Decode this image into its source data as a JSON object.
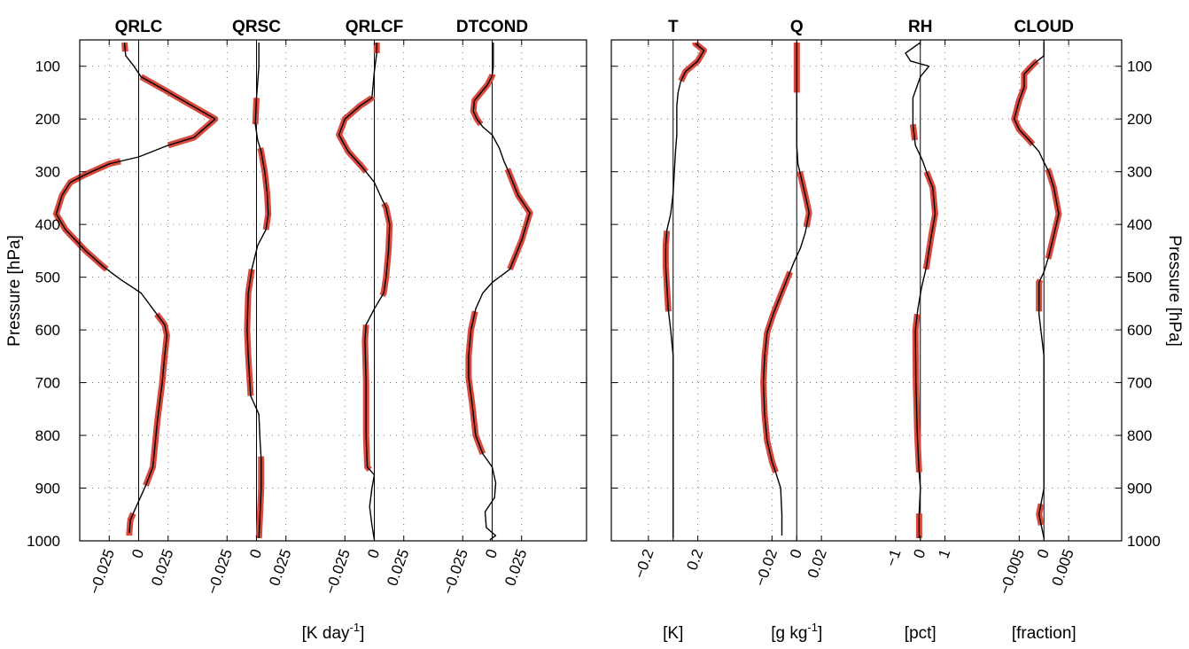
{
  "chart_data": [
    {
      "type": "line",
      "panel": "left",
      "ylabel": "Pressure [hPa]",
      "xlabel": "[K day^-1]",
      "ylim": [
        1000,
        50
      ],
      "yticks": [
        100,
        200,
        300,
        400,
        500,
        600,
        700,
        800,
        900,
        1000
      ],
      "column_width_units": 0.1,
      "grid": "dotted",
      "columns": [
        {
          "title": "QRLC",
          "xticks": [
            -0.025,
            0,
            0.025
          ],
          "xtick_labels": [
            "−0.025",
            "0",
            "0.025"
          ],
          "profile": [
            [
              -0.012,
              55
            ],
            [
              -0.011,
              80
            ],
            [
              -0.004,
              100
            ],
            [
              0.002,
              120
            ],
            [
              0.022,
              145
            ],
            [
              0.065,
              200
            ],
            [
              0.047,
              235
            ],
            [
              0.025,
              250
            ],
            [
              0.0,
              272
            ],
            [
              -0.025,
              285
            ],
            [
              -0.045,
              305
            ],
            [
              -0.058,
              320
            ],
            [
              -0.065,
              345
            ],
            [
              -0.07,
              380
            ],
            [
              -0.062,
              410
            ],
            [
              -0.045,
              450
            ],
            [
              -0.03,
              480
            ],
            [
              -0.015,
              505
            ],
            [
              0.002,
              530
            ],
            [
              0.012,
              560
            ],
            [
              0.022,
              590
            ],
            [
              0.024,
              610
            ],
            [
              0.022,
              650
            ],
            [
              0.02,
              700
            ],
            [
              0.016,
              770
            ],
            [
              0.012,
              860
            ],
            [
              0.006,
              895
            ],
            [
              -0.002,
              935
            ],
            [
              -0.007,
              960
            ],
            [
              -0.008,
              985
            ]
          ],
          "highlights": [
            [
              55,
              72
            ],
            [
              120,
              250
            ],
            [
              280,
              485
            ],
            [
              570,
              895
            ],
            [
              948,
              990
            ]
          ]
        },
        {
          "title": "QRSC",
          "xticks": [
            -0.025,
            0,
            0.025
          ],
          "xtick_labels": [
            "−0.025",
            "0",
            "0.025"
          ],
          "profile": [
            [
              0.002,
              55
            ],
            [
              0.002,
              100
            ],
            [
              0.0,
              160
            ],
            [
              -0.001,
              210
            ],
            [
              0.001,
              240
            ],
            [
              0.004,
              262
            ],
            [
              0.007,
              300
            ],
            [
              0.009,
              340
            ],
            [
              0.01,
              380
            ],
            [
              0.008,
              410
            ],
            [
              0.001,
              440
            ],
            [
              -0.004,
              485
            ],
            [
              -0.007,
              530
            ],
            [
              -0.008,
              600
            ],
            [
              -0.007,
              650
            ],
            [
              -0.005,
              725
            ],
            [
              0.002,
              760
            ],
            [
              0.003,
              810
            ],
            [
              0.004,
              845
            ],
            [
              0.004,
              900
            ],
            [
              0.003,
              950
            ],
            [
              0.002,
              995
            ]
          ],
          "highlights": [
            [
              160,
              210
            ],
            [
              255,
              410
            ],
            [
              485,
              725
            ],
            [
              840,
              995
            ]
          ]
        },
        {
          "title": "QRLCF",
          "xticks": [
            -0.025,
            0,
            0.025
          ],
          "xtick_labels": [
            "−0.025",
            "0",
            "0.025"
          ],
          "profile": [
            [
              0.002,
              55
            ],
            [
              0.002,
              75
            ],
            [
              0.0,
              110
            ],
            [
              -0.002,
              160
            ],
            [
              -0.012,
              175
            ],
            [
              -0.025,
              200
            ],
            [
              -0.03,
              230
            ],
            [
              -0.022,
              262
            ],
            [
              -0.01,
              292
            ],
            [
              0.0,
              320
            ],
            [
              0.006,
              350
            ],
            [
              0.01,
              368
            ],
            [
              0.013,
              400
            ],
            [
              0.012,
              450
            ],
            [
              0.01,
              500
            ],
            [
              0.008,
              530
            ],
            [
              0.0,
              560
            ],
            [
              -0.007,
              590
            ],
            [
              -0.008,
              620
            ],
            [
              -0.007,
              700
            ],
            [
              -0.007,
              800
            ],
            [
              -0.006,
              860
            ],
            [
              0.0,
              875
            ],
            [
              -0.002,
              900
            ],
            [
              -0.004,
              935
            ],
            [
              -0.002,
              970
            ],
            [
              0.0,
              998
            ]
          ],
          "highlights": [
            [
              55,
              75
            ],
            [
              158,
              300
            ],
            [
              360,
              535
            ],
            [
              590,
              865
            ]
          ]
        },
        {
          "title": "DTCOND",
          "xticks": [
            -0.025,
            0,
            0.025
          ],
          "xtick_labels": [
            "−0.025",
            "0",
            "0.025"
          ],
          "profile": [
            [
              0.001,
              55
            ],
            [
              0.001,
              100
            ],
            [
              0.0,
              118
            ],
            [
              -0.004,
              135
            ],
            [
              -0.015,
              165
            ],
            [
              -0.016,
              185
            ],
            [
              -0.013,
              200
            ],
            [
              -0.008,
              215
            ],
            [
              0.0,
              230
            ],
            [
              0.006,
              255
            ],
            [
              0.01,
              280
            ],
            [
              0.014,
              300
            ],
            [
              0.022,
              345
            ],
            [
              0.032,
              378
            ],
            [
              0.025,
              430
            ],
            [
              0.015,
              485
            ],
            [
              0.0,
              510
            ],
            [
              -0.008,
              530
            ],
            [
              -0.014,
              560
            ],
            [
              -0.018,
              600
            ],
            [
              -0.02,
              650
            ],
            [
              -0.02,
              690
            ],
            [
              -0.017,
              740
            ],
            [
              -0.014,
              800
            ],
            [
              -0.008,
              835
            ],
            [
              0.0,
              860
            ],
            [
              0.003,
              890
            ],
            [
              0.002,
              918
            ],
            [
              -0.006,
              945
            ],
            [
              -0.005,
              975
            ],
            [
              0.003,
              990
            ],
            [
              -0.002,
              998
            ]
          ],
          "highlights": [
            [
              115,
              210
            ],
            [
              295,
              485
            ],
            [
              565,
              835
            ]
          ]
        }
      ]
    },
    {
      "type": "line",
      "panel": "right",
      "ylabel": "Pressure [hPa]",
      "ylim": [
        1000,
        50
      ],
      "yticks": [
        100,
        200,
        300,
        400,
        500,
        600,
        700,
        800,
        900,
        1000
      ],
      "grid": "dotted",
      "columns": [
        {
          "title": "T",
          "xlabel": "[K]",
          "span": [
            -0.5,
            0.5
          ],
          "xticks": [
            -0.2,
            0.2
          ],
          "xtick_labels": [
            "−0.2",
            "0.2"
          ],
          "profile": [
            [
              0.18,
              57
            ],
            [
              0.25,
              70
            ],
            [
              0.2,
              90
            ],
            [
              0.1,
              110
            ],
            [
              0.06,
              130
            ],
            [
              0.04,
              150
            ],
            [
              0.03,
              175
            ],
            [
              0.03,
              200
            ],
            [
              0.03,
              230
            ],
            [
              0.02,
              260
            ],
            [
              0.01,
              300
            ],
            [
              0.0,
              340
            ],
            [
              -0.02,
              380
            ],
            [
              -0.05,
              410
            ],
            [
              -0.06,
              440
            ],
            [
              -0.06,
              480
            ],
            [
              -0.05,
              520
            ],
            [
              -0.04,
              560
            ],
            [
              -0.02,
              600
            ],
            [
              0.0,
              650
            ],
            [
              0.0,
              700
            ],
            [
              0.0,
              800
            ],
            [
              0.0,
              900
            ],
            [
              0.0,
              995
            ]
          ],
          "highlights": [
            [
              55,
              128
            ],
            [
              412,
              565
            ]
          ]
        },
        {
          "title": "Q",
          "xlabel": "[g kg^-1]",
          "span": [
            -0.05,
            0.05
          ],
          "xticks": [
            -0.02,
            0,
            0.02
          ],
          "xtick_labels": [
            "−0.02",
            "0",
            "0.02"
          ],
          "profile": [
            [
              0.0,
              55
            ],
            [
              0.0,
              100
            ],
            [
              0.0,
              150
            ],
            [
              0.0,
              200
            ],
            [
              0.0,
              250
            ],
            [
              0.001,
              285
            ],
            [
              0.003,
              305
            ],
            [
              0.007,
              345
            ],
            [
              0.01,
              378
            ],
            [
              0.007,
              415
            ],
            [
              0.003,
              445
            ],
            [
              -0.002,
              470
            ],
            [
              -0.008,
              505
            ],
            [
              -0.014,
              540
            ],
            [
              -0.019,
              570
            ],
            [
              -0.024,
              605
            ],
            [
              -0.026,
              650
            ],
            [
              -0.027,
              700
            ],
            [
              -0.026,
              760
            ],
            [
              -0.024,
              810
            ],
            [
              -0.02,
              850
            ],
            [
              -0.017,
              870
            ],
            [
              -0.013,
              900
            ],
            [
              -0.012,
              950
            ],
            [
              -0.012,
              990
            ]
          ],
          "highlights": [
            [
              55,
              150
            ],
            [
              300,
              405
            ],
            [
              490,
              870
            ]
          ]
        },
        {
          "title": "RH",
          "xlabel": "[pct]",
          "span": [
            -2.5,
            2.5
          ],
          "xticks": [
            -1,
            0,
            1
          ],
          "xtick_labels": [
            "−1",
            "0",
            "1"
          ],
          "profile": [
            [
              0.0,
              55
            ],
            [
              -0.6,
              75
            ],
            [
              -0.4,
              90
            ],
            [
              0.35,
              100
            ],
            [
              0.0,
              120
            ],
            [
              -0.3,
              160
            ],
            [
              -0.3,
              210
            ],
            [
              -0.2,
              250
            ],
            [
              0.1,
              280
            ],
            [
              0.25,
              300
            ],
            [
              0.5,
              330
            ],
            [
              0.6,
              380
            ],
            [
              0.45,
              420
            ],
            [
              0.25,
              480
            ],
            [
              0.05,
              520
            ],
            [
              -0.1,
              560
            ],
            [
              -0.2,
              600
            ],
            [
              -0.18,
              700
            ],
            [
              -0.12,
              800
            ],
            [
              -0.05,
              870
            ],
            [
              0.0,
              900
            ],
            [
              -0.05,
              950
            ],
            [
              -0.05,
              995
            ]
          ],
          "highlights": [
            [
              210,
              240
            ],
            [
              300,
              485
            ],
            [
              570,
              870
            ],
            [
              948,
              995
            ]
          ]
        },
        {
          "title": "CLOUD",
          "xlabel": "[fraction]",
          "span": [
            -0.0125,
            0.0125
          ],
          "xticks": [
            -0.005,
            0,
            0.005
          ],
          "xtick_labels": [
            "−0.005",
            "0",
            "0.005"
          ],
          "profile": [
            [
              0.0,
              55
            ],
            [
              0.0,
              80
            ],
            [
              -0.002,
              95
            ],
            [
              -0.004,
              115
            ],
            [
              -0.004,
              140
            ],
            [
              -0.005,
              165
            ],
            [
              -0.006,
              200
            ],
            [
              -0.005,
              220
            ],
            [
              -0.003,
              240
            ],
            [
              -0.001,
              262
            ],
            [
              0.0,
              282
            ],
            [
              0.001,
              300
            ],
            [
              0.002,
              330
            ],
            [
              0.003,
              380
            ],
            [
              0.002,
              420
            ],
            [
              0.001,
              460
            ],
            [
              0.0,
              490
            ],
            [
              -0.001,
              510
            ],
            [
              -0.001,
              570
            ],
            [
              0.0,
              650
            ],
            [
              0.0,
              800
            ],
            [
              0.0,
              900
            ],
            [
              -0.001,
              950
            ],
            [
              0.0,
              995
            ]
          ],
          "highlights": [
            [
              90,
              248
            ],
            [
              295,
              465
            ],
            [
              505,
              565
            ],
            [
              930,
              970
            ]
          ]
        }
      ]
    }
  ]
}
